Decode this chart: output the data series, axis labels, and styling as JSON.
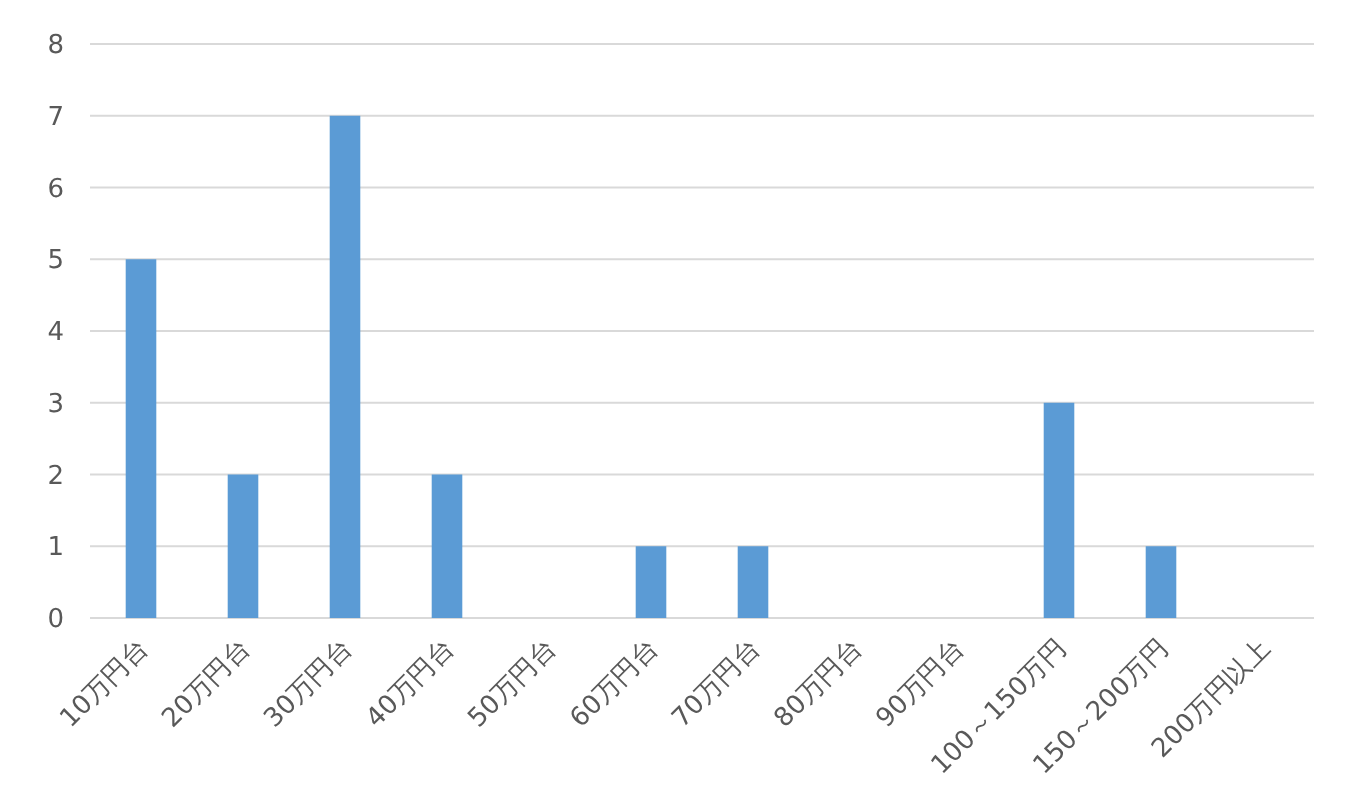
{
  "chart_data": {
    "type": "bar",
    "categories": [
      "10万円台",
      "20万円台",
      "30万円台",
      "40万円台",
      "50万円台",
      "60万円台",
      "70万円台",
      "80万円台",
      "90万円台",
      "100～150万円",
      "150～200万円",
      "200万円以上"
    ],
    "values": [
      5,
      2,
      7,
      2,
      0,
      1,
      1,
      0,
      0,
      3,
      1,
      0
    ],
    "color": "#5b9bd5",
    "ylim": [
      0,
      8
    ],
    "yticks": [
      0,
      1,
      2,
      3,
      4,
      5,
      6,
      7,
      8
    ],
    "grid": "y"
  }
}
